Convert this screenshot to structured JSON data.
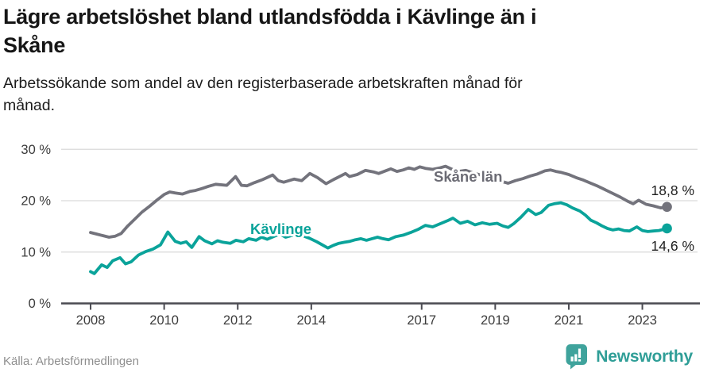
{
  "header": {
    "title_lines": [
      "Lägre arbetslöshet bland utlandsfödda i Kävlinge än i",
      "Skåne"
    ],
    "subtitle_lines": [
      "Arbetssökande som andel av den registerbaserade arbetskraften månad för",
      "månad."
    ]
  },
  "chart_data": {
    "type": "line",
    "title": "Lägre arbetslöshet bland utlandsfödda i Kävlinge än i Skåne",
    "subtitle": "Arbetssökande som andel av den registerbaserade arbetskraften månad för månad.",
    "x_axis": {
      "range": [
        2007.2,
        2024.5
      ],
      "ticks": [
        {
          "value": 2008,
          "label": "2008"
        },
        {
          "value": 2010,
          "label": "2010"
        },
        {
          "value": 2012,
          "label": "2012"
        },
        {
          "value": 2014,
          "label": "2014"
        },
        {
          "value": 2017,
          "label": "2017"
        },
        {
          "value": 2019,
          "label": "2019"
        },
        {
          "value": 2021,
          "label": "2021"
        },
        {
          "value": 2023,
          "label": "2023"
        }
      ]
    },
    "y_axis": {
      "range": [
        0,
        30
      ],
      "unit": "%",
      "gridlines": true,
      "ticks": [
        {
          "value": 0,
          "label": "0 %"
        },
        {
          "value": 10,
          "label": "10 %"
        },
        {
          "value": 20,
          "label": "20 %"
        },
        {
          "value": 30,
          "label": "30 %"
        }
      ]
    },
    "series": [
      {
        "id": "skane-lan",
        "name": "Skåne län",
        "color": "#73737c",
        "label_color": "#6b6b74",
        "label_anchor": [
          2017.33,
          23.7
        ],
        "end_label": "18,8 %",
        "end_value": 18.8,
        "end_label_side": "above",
        "points": [
          [
            2008.0,
            13.8
          ],
          [
            2008.17,
            13.5
          ],
          [
            2008.33,
            13.2
          ],
          [
            2008.5,
            12.9
          ],
          [
            2008.67,
            13.1
          ],
          [
            2008.83,
            13.6
          ],
          [
            2009.0,
            15.0
          ],
          [
            2009.2,
            16.4
          ],
          [
            2009.4,
            17.8
          ],
          [
            2009.6,
            18.9
          ],
          [
            2009.8,
            20.1
          ],
          [
            2010.0,
            21.2
          ],
          [
            2010.15,
            21.7
          ],
          [
            2010.3,
            21.5
          ],
          [
            2010.5,
            21.3
          ],
          [
            2010.7,
            21.8
          ],
          [
            2010.85,
            22.0
          ],
          [
            2011.0,
            22.3
          ],
          [
            2011.2,
            22.8
          ],
          [
            2011.4,
            23.2
          ],
          [
            2011.7,
            23.0
          ],
          [
            2011.94,
            24.7
          ],
          [
            2012.1,
            23.0
          ],
          [
            2012.25,
            22.9
          ],
          [
            2012.45,
            23.5
          ],
          [
            2012.67,
            24.1
          ],
          [
            2012.95,
            25.0
          ],
          [
            2013.1,
            23.9
          ],
          [
            2013.25,
            23.6
          ],
          [
            2013.53,
            24.2
          ],
          [
            2013.74,
            23.9
          ],
          [
            2013.96,
            25.3
          ],
          [
            2014.17,
            24.5
          ],
          [
            2014.4,
            23.3
          ],
          [
            2014.6,
            24.1
          ],
          [
            2014.82,
            24.9
          ],
          [
            2014.93,
            25.3
          ],
          [
            2015.04,
            24.7
          ],
          [
            2015.25,
            25.1
          ],
          [
            2015.47,
            25.9
          ],
          [
            2015.69,
            25.6
          ],
          [
            2015.83,
            25.3
          ],
          [
            2016.05,
            25.9
          ],
          [
            2016.16,
            26.2
          ],
          [
            2016.33,
            25.7
          ],
          [
            2016.5,
            26.0
          ],
          [
            2016.65,
            26.4
          ],
          [
            2016.8,
            26.1
          ],
          [
            2016.95,
            26.6
          ],
          [
            2017.1,
            26.3
          ],
          [
            2017.3,
            26.1
          ],
          [
            2017.5,
            26.4
          ],
          [
            2017.65,
            26.7
          ],
          [
            2017.8,
            26.2
          ],
          [
            2018.0,
            25.7
          ],
          [
            2018.2,
            25.9
          ],
          [
            2018.4,
            25.4
          ],
          [
            2018.6,
            25.0
          ],
          [
            2018.8,
            24.6
          ],
          [
            2019.0,
            24.2
          ],
          [
            2019.2,
            23.7
          ],
          [
            2019.35,
            23.4
          ],
          [
            2019.55,
            23.9
          ],
          [
            2019.75,
            24.3
          ],
          [
            2019.95,
            24.8
          ],
          [
            2020.15,
            25.2
          ],
          [
            2020.35,
            25.8
          ],
          [
            2020.5,
            26.0
          ],
          [
            2020.65,
            25.7
          ],
          [
            2020.8,
            25.5
          ],
          [
            2021.0,
            25.1
          ],
          [
            2021.2,
            24.5
          ],
          [
            2021.4,
            24.0
          ],
          [
            2021.6,
            23.4
          ],
          [
            2021.8,
            22.8
          ],
          [
            2022.0,
            22.1
          ],
          [
            2022.2,
            21.4
          ],
          [
            2022.4,
            20.7
          ],
          [
            2022.6,
            19.9
          ],
          [
            2022.75,
            19.4
          ],
          [
            2022.9,
            20.1
          ],
          [
            2023.1,
            19.3
          ],
          [
            2023.3,
            19.0
          ],
          [
            2023.5,
            18.6
          ],
          [
            2023.67,
            18.8
          ]
        ]
      },
      {
        "id": "kavlinge",
        "name": "Kävlinge",
        "color": "#0aa39a",
        "label_color": "#0aa39a",
        "label_anchor": [
          2012.34,
          13.5
        ],
        "end_label": "14,6 %",
        "end_value": 14.6,
        "end_label_side": "below",
        "points": [
          [
            2008.0,
            6.2
          ],
          [
            2008.1,
            5.8
          ],
          [
            2008.3,
            7.5
          ],
          [
            2008.45,
            7.0
          ],
          [
            2008.6,
            8.3
          ],
          [
            2008.8,
            8.9
          ],
          [
            2008.95,
            7.7
          ],
          [
            2009.1,
            8.1
          ],
          [
            2009.3,
            9.4
          ],
          [
            2009.5,
            10.1
          ],
          [
            2009.7,
            10.6
          ],
          [
            2009.9,
            11.4
          ],
          [
            2010.1,
            13.9
          ],
          [
            2010.3,
            12.1
          ],
          [
            2010.45,
            11.7
          ],
          [
            2010.6,
            12.0
          ],
          [
            2010.75,
            10.9
          ],
          [
            2010.95,
            13.0
          ],
          [
            2011.1,
            12.2
          ],
          [
            2011.3,
            11.6
          ],
          [
            2011.45,
            12.2
          ],
          [
            2011.6,
            11.9
          ],
          [
            2011.8,
            11.7
          ],
          [
            2011.95,
            12.3
          ],
          [
            2012.15,
            12.0
          ],
          [
            2012.3,
            12.6
          ],
          [
            2012.5,
            12.3
          ],
          [
            2012.65,
            12.9
          ],
          [
            2012.8,
            12.5
          ],
          [
            2013.0,
            13.1
          ],
          [
            2013.15,
            13.5
          ],
          [
            2013.3,
            12.9
          ],
          [
            2013.5,
            13.3
          ],
          [
            2013.65,
            13.7
          ],
          [
            2013.8,
            13.1
          ],
          [
            2013.95,
            12.7
          ],
          [
            2014.15,
            12.0
          ],
          [
            2014.3,
            11.4
          ],
          [
            2014.45,
            10.8
          ],
          [
            2014.6,
            11.3
          ],
          [
            2014.75,
            11.7
          ],
          [
            2014.9,
            11.9
          ],
          [
            2015.05,
            12.1
          ],
          [
            2015.2,
            12.4
          ],
          [
            2015.35,
            12.6
          ],
          [
            2015.5,
            12.3
          ],
          [
            2015.65,
            12.6
          ],
          [
            2015.8,
            12.9
          ],
          [
            2015.95,
            12.6
          ],
          [
            2016.1,
            12.4
          ],
          [
            2016.3,
            13.0
          ],
          [
            2016.5,
            13.3
          ],
          [
            2016.7,
            13.8
          ],
          [
            2016.9,
            14.4
          ],
          [
            2017.1,
            15.2
          ],
          [
            2017.3,
            14.9
          ],
          [
            2017.5,
            15.5
          ],
          [
            2017.7,
            16.1
          ],
          [
            2017.85,
            16.6
          ],
          [
            2018.05,
            15.6
          ],
          [
            2018.25,
            16.0
          ],
          [
            2018.45,
            15.3
          ],
          [
            2018.65,
            15.7
          ],
          [
            2018.85,
            15.4
          ],
          [
            2019.05,
            15.6
          ],
          [
            2019.2,
            15.1
          ],
          [
            2019.35,
            14.8
          ],
          [
            2019.5,
            15.5
          ],
          [
            2019.7,
            16.8
          ],
          [
            2019.9,
            18.3
          ],
          [
            2020.1,
            17.3
          ],
          [
            2020.25,
            17.7
          ],
          [
            2020.45,
            19.1
          ],
          [
            2020.6,
            19.4
          ],
          [
            2020.78,
            19.6
          ],
          [
            2020.95,
            19.2
          ],
          [
            2021.1,
            18.6
          ],
          [
            2021.3,
            18.0
          ],
          [
            2021.45,
            17.2
          ],
          [
            2021.6,
            16.2
          ],
          [
            2021.75,
            15.7
          ],
          [
            2021.9,
            15.1
          ],
          [
            2022.05,
            14.6
          ],
          [
            2022.2,
            14.3
          ],
          [
            2022.35,
            14.5
          ],
          [
            2022.5,
            14.2
          ],
          [
            2022.65,
            14.1
          ],
          [
            2022.85,
            14.9
          ],
          [
            2023.0,
            14.2
          ],
          [
            2023.15,
            14.0
          ],
          [
            2023.3,
            14.1
          ],
          [
            2023.45,
            14.2
          ],
          [
            2023.67,
            14.6
          ]
        ]
      }
    ],
    "legend_position": "inline-labels",
    "colors": {
      "grid": "#d9d9d9",
      "axis": "#4b4b52",
      "tick_label": "#3c3c3c",
      "annotation": "#1e1e1e"
    }
  },
  "footer": {
    "source": "Källa: Arbetsförmedlingen",
    "brand": "Newsworthy",
    "brand_color": "#2f9e97"
  }
}
